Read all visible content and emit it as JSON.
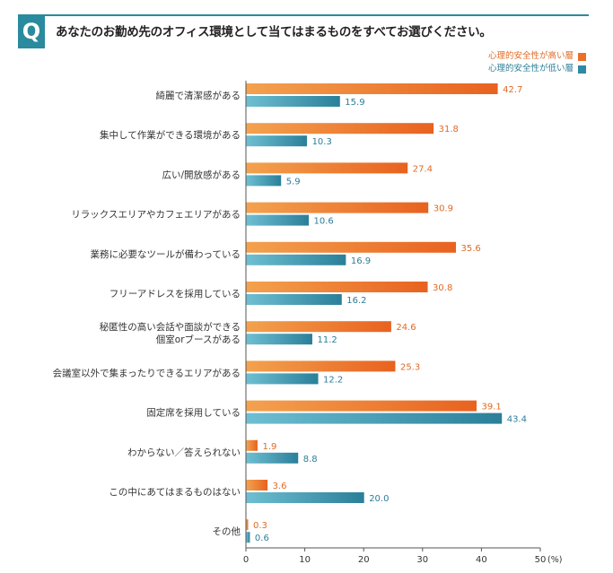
{
  "header": {
    "badge": "Q",
    "question": "あなたのお勤め先のオフィス環境として当てはまるものをすべてお選びください。"
  },
  "colors": {
    "high": "#ec6f28",
    "low": "#2d8aa2",
    "high_text": "#e06a23",
    "low_text": "#2d7e98"
  },
  "chart_data": {
    "type": "bar",
    "orientation": "horizontal",
    "title": "",
    "xlabel": "",
    "ylabel": "",
    "xlim": [
      0,
      50
    ],
    "xticks": [
      "0",
      "10",
      "20",
      "30",
      "40"
    ],
    "last_tick": "50",
    "unit": "(%)",
    "legend_position": "top-right",
    "categories": [
      [
        "綺麗で清潔感がある"
      ],
      [
        "集中して作業ができる環境がある"
      ],
      [
        "広い/開放感がある"
      ],
      [
        "リラックスエリアやカフェエリアがある"
      ],
      [
        "業務に必要なツールが備わっている"
      ],
      [
        "フリーアドレスを採用している"
      ],
      [
        "秘匿性の高い会話や面談ができる",
        "個室orブースがある"
      ],
      [
        "会議室以外で集まったりできるエリアがある"
      ],
      [
        "固定席を採用している"
      ],
      [
        "わからない／答えられない"
      ],
      [
        "この中にあてはまるものはない"
      ],
      [
        "その他"
      ]
    ],
    "series": [
      {
        "name": "心理的安全性が高い層",
        "values": [
          42.7,
          31.8,
          27.4,
          30.9,
          35.6,
          30.8,
          24.6,
          25.3,
          39.1,
          1.9,
          3.6,
          0.3
        ],
        "labels": [
          "42.7",
          "31.8",
          "27.4",
          "30.9",
          "35.6",
          "30.8",
          "24.6",
          "25.3",
          "39.1",
          "1.9",
          "3.6",
          "0.3"
        ]
      },
      {
        "name": "心理的安全性が低い層",
        "values": [
          15.9,
          10.3,
          5.9,
          10.6,
          16.9,
          16.2,
          11.2,
          12.2,
          43.4,
          8.8,
          20.0,
          0.6
        ],
        "labels": [
          "15.9",
          "10.3",
          "5.9",
          "10.6",
          "16.9",
          "16.2",
          "11.2",
          "12.2",
          "43.4",
          "8.8",
          "20.0",
          "0.6"
        ]
      }
    ]
  }
}
